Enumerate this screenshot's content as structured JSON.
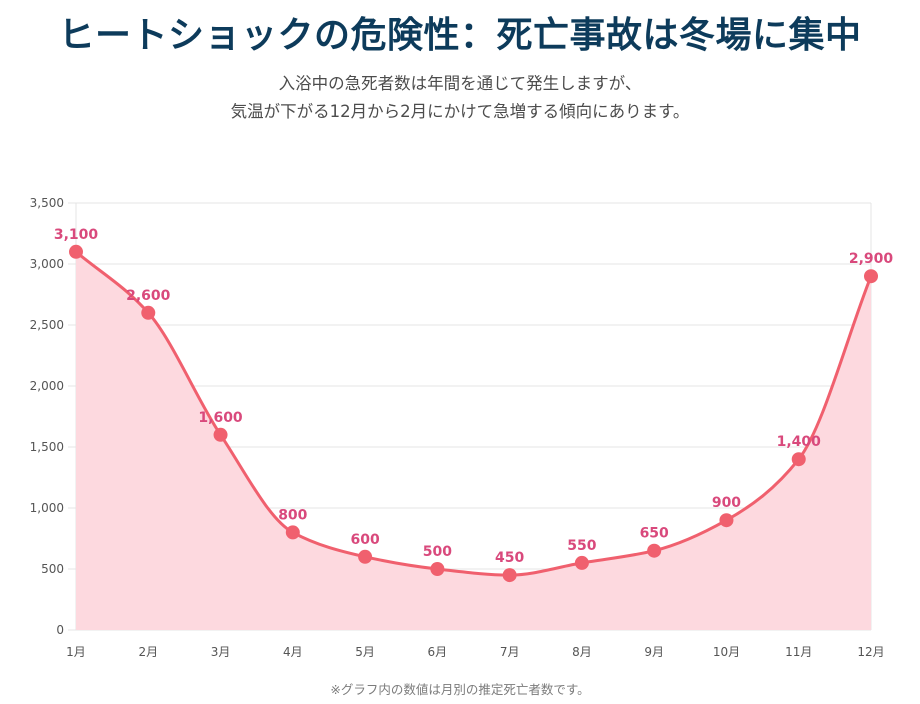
{
  "header": {
    "title": "ヒートショックの危険性：死亡事故は冬場に集中",
    "subtitle_line1": "入浴中の急死者数は年間を通じて発生しますが、",
    "subtitle_line2": "気温が下がる12月から2月にかけて急増する傾向にあります。"
  },
  "footnote": "※グラフ内の数値は月別の推定死亡者数です。",
  "colors": {
    "line": "#f0606e",
    "area": "#fdd9df",
    "point": "#f0606e",
    "data_label": "#d9497c",
    "title": "#0d3b5b",
    "grid": "#e4e4e4"
  },
  "chart_data": {
    "type": "area",
    "categories": [
      "1月",
      "2月",
      "3月",
      "4月",
      "5月",
      "6月",
      "7月",
      "8月",
      "9月",
      "10月",
      "11月",
      "12月"
    ],
    "series": [
      {
        "values": [
          3100,
          2600,
          1600,
          800,
          600,
          500,
          450,
          550,
          650,
          900,
          1400,
          2900
        ]
      }
    ],
    "data_labels": [
      "3,100",
      "2,600",
      "1,600",
      "800",
      "600",
      "500",
      "450",
      "550",
      "650",
      "900",
      "1,400",
      "2,900"
    ],
    "y_ticks": [
      0,
      500,
      1000,
      1500,
      2000,
      2500,
      3000,
      3500
    ],
    "y_tick_labels": [
      "0",
      "500",
      "1,000",
      "1,500",
      "2,000",
      "2,500",
      "3,000",
      "3,500"
    ],
    "ylim": [
      0,
      3500
    ],
    "grid": true,
    "legend": "none",
    "smooth": true
  }
}
